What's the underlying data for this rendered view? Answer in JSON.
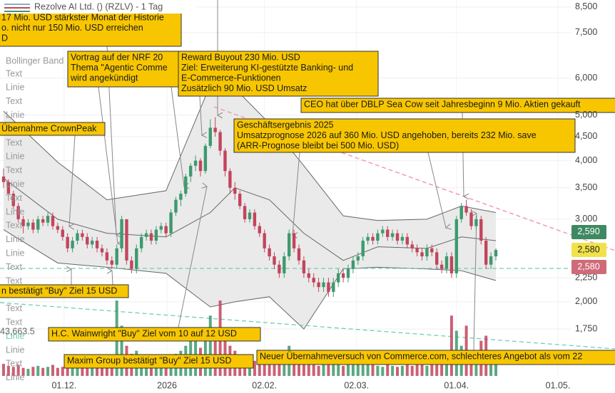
{
  "chart_data": {
    "type": "candlestick",
    "title": "Rezolve AI Ltd. () (RZLV) - 1 Tag",
    "up_color": "#3d9a6e",
    "down_color": "#c2455c",
    "ohlc": [
      [
        3.7,
        3.85,
        3.5,
        3.6
      ],
      [
        3.6,
        3.65,
        3.35,
        3.4
      ],
      [
        3.4,
        3.45,
        3.15,
        3.2
      ],
      [
        3.2,
        3.25,
        2.95,
        3.0
      ],
      [
        3.0,
        3.05,
        2.8,
        2.9
      ],
      [
        2.9,
        3.0,
        2.85,
        2.95
      ],
      [
        2.95,
        3.0,
        2.8,
        2.85
      ],
      [
        2.85,
        3.05,
        2.8,
        3.0
      ],
      [
        3.0,
        3.05,
        2.9,
        2.95
      ],
      [
        2.95,
        3.1,
        2.9,
        3.05
      ],
      [
        3.05,
        3.1,
        2.85,
        2.9
      ],
      [
        2.9,
        2.95,
        2.8,
        2.85
      ],
      [
        2.85,
        2.9,
        2.7,
        2.75
      ],
      [
        2.75,
        2.8,
        2.55,
        2.6
      ],
      [
        2.6,
        2.75,
        2.55,
        2.7
      ],
      [
        2.7,
        2.85,
        2.65,
        2.8
      ],
      [
        2.8,
        2.85,
        2.7,
        2.75
      ],
      [
        2.75,
        2.8,
        2.6,
        2.65
      ],
      [
        2.65,
        2.75,
        2.6,
        2.7
      ],
      [
        2.7,
        2.75,
        2.55,
        2.6
      ],
      [
        2.6,
        2.65,
        2.5,
        2.55
      ],
      [
        2.55,
        2.6,
        2.4,
        2.45
      ],
      [
        2.45,
        2.5,
        2.35,
        2.4
      ],
      [
        2.4,
        2.65,
        2.35,
        2.6
      ],
      [
        2.6,
        3.05,
        2.55,
        3.0
      ],
      [
        3.0,
        3.0,
        2.4,
        2.45
      ],
      [
        2.45,
        2.5,
        2.3,
        2.35
      ],
      [
        2.35,
        2.65,
        2.3,
        2.6
      ],
      [
        2.6,
        2.8,
        2.55,
        2.75
      ],
      [
        2.75,
        2.85,
        2.7,
        2.8
      ],
      [
        2.8,
        2.85,
        2.65,
        2.7
      ],
      [
        2.7,
        2.9,
        2.65,
        2.85
      ],
      [
        2.85,
        2.95,
        2.8,
        2.9
      ],
      [
        2.9,
        2.95,
        2.75,
        2.8
      ],
      [
        2.8,
        3.15,
        2.75,
        3.1
      ],
      [
        3.1,
        3.35,
        3.05,
        3.3
      ],
      [
        3.3,
        3.45,
        3.2,
        3.4
      ],
      [
        3.4,
        3.75,
        3.35,
        3.7
      ],
      [
        3.7,
        3.95,
        3.6,
        3.9
      ],
      [
        3.9,
        4.1,
        3.8,
        4.0
      ],
      [
        4.0,
        4.05,
        3.7,
        3.8
      ],
      [
        3.8,
        4.35,
        3.75,
        4.3
      ],
      [
        4.3,
        4.9,
        4.25,
        4.7
      ],
      [
        4.7,
        4.95,
        4.5,
        4.6
      ],
      [
        4.6,
        4.65,
        4.1,
        4.2
      ],
      [
        4.2,
        4.25,
        3.7,
        3.8
      ],
      [
        3.8,
        3.85,
        3.4,
        3.5
      ],
      [
        3.5,
        3.6,
        3.3,
        3.4
      ],
      [
        3.4,
        3.45,
        3.15,
        3.2
      ],
      [
        3.2,
        3.25,
        2.95,
        3.0
      ],
      [
        3.0,
        3.15,
        2.95,
        3.1
      ],
      [
        3.1,
        3.15,
        2.85,
        2.9
      ],
      [
        2.9,
        2.95,
        2.75,
        2.8
      ],
      [
        2.8,
        2.85,
        2.55,
        2.6
      ],
      [
        2.6,
        2.65,
        2.45,
        2.5
      ],
      [
        2.5,
        2.55,
        2.35,
        2.4
      ],
      [
        2.4,
        2.45,
        2.25,
        2.3
      ],
      [
        2.3,
        2.55,
        2.25,
        2.5
      ],
      [
        2.5,
        2.85,
        2.45,
        2.8
      ],
      [
        2.8,
        2.85,
        2.55,
        2.6
      ],
      [
        2.6,
        2.65,
        2.4,
        2.45
      ],
      [
        2.45,
        2.5,
        2.25,
        2.3
      ],
      [
        2.3,
        2.35,
        2.2,
        2.25
      ],
      [
        2.25,
        2.3,
        2.15,
        2.2
      ],
      [
        2.2,
        2.25,
        2.1,
        2.15
      ],
      [
        2.15,
        2.25,
        2.1,
        2.2
      ],
      [
        2.2,
        2.25,
        2.05,
        2.1
      ],
      [
        2.1,
        2.25,
        2.05,
        2.2
      ],
      [
        2.2,
        2.35,
        2.15,
        2.3
      ],
      [
        2.3,
        2.35,
        2.2,
        2.25
      ],
      [
        2.25,
        2.4,
        2.2,
        2.35
      ],
      [
        2.35,
        2.5,
        2.3,
        2.45
      ],
      [
        2.45,
        2.55,
        2.4,
        2.5
      ],
      [
        2.5,
        2.75,
        2.45,
        2.7
      ],
      [
        2.7,
        2.8,
        2.65,
        2.75
      ],
      [
        2.75,
        2.8,
        2.65,
        2.7
      ],
      [
        2.7,
        2.85,
        2.65,
        2.8
      ],
      [
        2.8,
        2.9,
        2.75,
        2.85
      ],
      [
        2.85,
        2.9,
        2.7,
        2.75
      ],
      [
        2.75,
        2.85,
        2.7,
        2.8
      ],
      [
        2.8,
        2.85,
        2.65,
        2.7
      ],
      [
        2.7,
        2.8,
        2.65,
        2.75
      ],
      [
        2.75,
        2.8,
        2.6,
        2.65
      ],
      [
        2.65,
        2.7,
        2.55,
        2.6
      ],
      [
        2.6,
        2.65,
        2.5,
        2.55
      ],
      [
        2.55,
        2.6,
        2.45,
        2.5
      ],
      [
        2.5,
        2.65,
        2.45,
        2.6
      ],
      [
        2.6,
        2.65,
        2.5,
        2.55
      ],
      [
        2.55,
        2.6,
        2.35,
        2.4
      ],
      [
        2.4,
        2.45,
        2.3,
        2.35
      ],
      [
        2.35,
        2.55,
        2.3,
        2.5
      ],
      [
        2.5,
        2.55,
        2.25,
        2.3
      ],
      [
        2.3,
        3.05,
        2.25,
        3.0
      ],
      [
        3.0,
        3.25,
        2.95,
        3.2
      ],
      [
        3.2,
        3.3,
        3.05,
        3.1
      ],
      [
        3.1,
        3.15,
        2.85,
        2.9
      ],
      [
        2.9,
        3.05,
        2.85,
        3.0
      ],
      [
        3.0,
        3.05,
        2.65,
        2.7
      ],
      [
        2.7,
        2.75,
        2.35,
        2.4
      ],
      [
        2.4,
        2.55,
        2.35,
        2.5
      ],
      [
        2.5,
        2.6,
        2.45,
        2.58
      ]
    ],
    "volume": [
      12000,
      10000,
      9000,
      11000,
      8000,
      7000,
      9000,
      10000,
      8000,
      9000,
      11000,
      8000,
      9000,
      14000,
      10000,
      9000,
      8000,
      10000,
      9000,
      11000,
      12000,
      20000,
      18000,
      75000,
      50000,
      30000,
      22000,
      25000,
      18000,
      15000,
      12000,
      14000,
      13000,
      11000,
      20000,
      22000,
      25000,
      30000,
      35000,
      40000,
      28000,
      45000,
      60000,
      40000,
      75000,
      45000,
      30000,
      25000,
      20000,
      18000,
      16000,
      15000,
      17000,
      20000,
      22000,
      18000,
      16000,
      25000,
      30000,
      20000,
      15000,
      14000,
      12000,
      11000,
      10000,
      12000,
      13000,
      11000,
      12000,
      10000,
      11000,
      12000,
      13000,
      15000,
      12000,
      11000,
      10000,
      9000,
      11000,
      10000,
      9000,
      10000,
      11000,
      10000,
      12000,
      11000,
      10000,
      13000,
      15000,
      14000,
      16000,
      60000,
      45000,
      30000,
      50000,
      25000,
      20000,
      35000,
      40000,
      25000,
      15000
    ],
    "vlim": [
      0,
      80000
    ],
    "volume_ticks": [
      {
        "value": 43663.5,
        "label": "43,663.5"
      }
    ],
    "bollinger": {
      "name": "Bollinger Band",
      "color": "#666666",
      "fill": "#e6e6e6",
      "x": [
        0,
        11,
        21,
        33,
        42,
        47,
        54,
        61,
        69,
        76,
        86,
        93,
        100
      ],
      "upper": [
        5.1,
        3.97,
        3.3,
        3.45,
        5.8,
        5.7,
        4.8,
        3.9,
        3.05,
        2.98,
        3.0,
        3.2,
        3.1
      ],
      "middle": [
        3.67,
        3.0,
        2.8,
        2.75,
        3.1,
        3.5,
        3.3,
        2.8,
        2.45,
        2.62,
        2.6,
        2.75,
        2.7
      ],
      "lower": [
        2.85,
        2.42,
        2.37,
        2.3,
        1.95,
        2.0,
        2.05,
        1.75,
        2.35,
        2.37,
        2.35,
        2.33,
        2.22
      ]
    },
    "ylim": [
      1.39,
      8.8
    ],
    "log_scale": true,
    "yticks": [
      {
        "value": 8.5,
        "label": "8,500"
      },
      {
        "value": 7.5,
        "label": "7,500"
      },
      {
        "value": 6,
        "label": "6,000"
      },
      {
        "value": 5,
        "label": "5,000"
      },
      {
        "value": 4.5,
        "label": "4,500"
      },
      {
        "value": 4,
        "label": "4,000"
      },
      {
        "value": 3.5,
        "label": "3,500"
      },
      {
        "value": 3,
        "label": "3,000"
      },
      {
        "value": 2.25,
        "label": "2,250"
      },
      {
        "value": 2,
        "label": "2,000"
      },
      {
        "value": 1.75,
        "label": "1,750"
      }
    ],
    "xlim": [
      -0.72,
      124.2
    ],
    "xticks": [
      {
        "value": 12.3,
        "label": "01.12."
      },
      {
        "value": 33.2,
        "label": "2026"
      },
      {
        "value": 53,
        "label": "02.02."
      },
      {
        "value": 71.7,
        "label": "02.03."
      },
      {
        "value": 92,
        "label": "01.04."
      },
      {
        "value": 112.6,
        "label": "01.05."
      }
    ],
    "grid": true,
    "legend_items": [
      "Text",
      "Linie",
      "Text",
      "Linie",
      "Text",
      "Text",
      "Linie",
      "Text",
      "Linie",
      "Text",
      "Linie",
      "Text",
      "Linie",
      "Linie",
      "Text",
      "Text",
      "Text",
      "Text",
      "Text",
      "Linie",
      "Linie",
      "Text",
      "Linie"
    ],
    "price_labels": [
      {
        "value": 2.59,
        "label": "2,590",
        "color": "#3d8a62",
        "text_color": "#ffffff"
      },
      {
        "value": 2.58,
        "label": "2,580",
        "color": "#f2e24a",
        "text_color": "#222222"
      },
      {
        "value": 2.58,
        "label": "2,580",
        "color": "#d06a78",
        "text_color": "#ffffff"
      }
    ],
    "annotations": [
      {
        "lines": [
          "17 Mio. USD stärkster Monat der Historie",
          "o. nicht nur 150 Mio. USD erreichen",
          "D"
        ]
      },
      {
        "lines": [
          "Vortrag auf der  NRF 20",
          "Thema \"Agentic Comme",
          "wird angekündigt"
        ]
      },
      {
        "lines": [
          "Reward Buyout 230 Mio. USD",
          "Ziel: Erweiterung KI-gestützte Banking- und",
          "E-Commerce-Funktionen",
          "Zusätzlich 90 Mio. USD Umsatz"
        ]
      },
      {
        "lines": [
          "CEO hat über DBLP Sea Cow seit Jahresbeginn 9 Mio. Aktien gekauft"
        ]
      },
      {
        "lines": [
          "Geschäftsergebnis 2025",
          "Umsatzprognose 2026 auf 360 Mio. USD angehoben, bereits 232 Mio. save",
          "(ARR-Prognose bleibt bei 500 Mio. USD)"
        ]
      },
      {
        "lines": [
          "Übernahme CrownPeak"
        ]
      },
      {
        "lines": [
          "n bestätigt \"Buy\" Ziel 15 USD"
        ]
      },
      {
        "lines": [
          "H.C. Wainwright \"Buy\" Ziel vom 10 auf 12 USD"
        ]
      },
      {
        "lines": [
          "Maxim Group bestätigt \"Buy\" Ziel 15 USD"
        ]
      },
      {
        "lines": [
          "Neuer Übernahmeversuch von Commerce.com, schlechteres Angebot als vom 22"
        ]
      }
    ]
  }
}
